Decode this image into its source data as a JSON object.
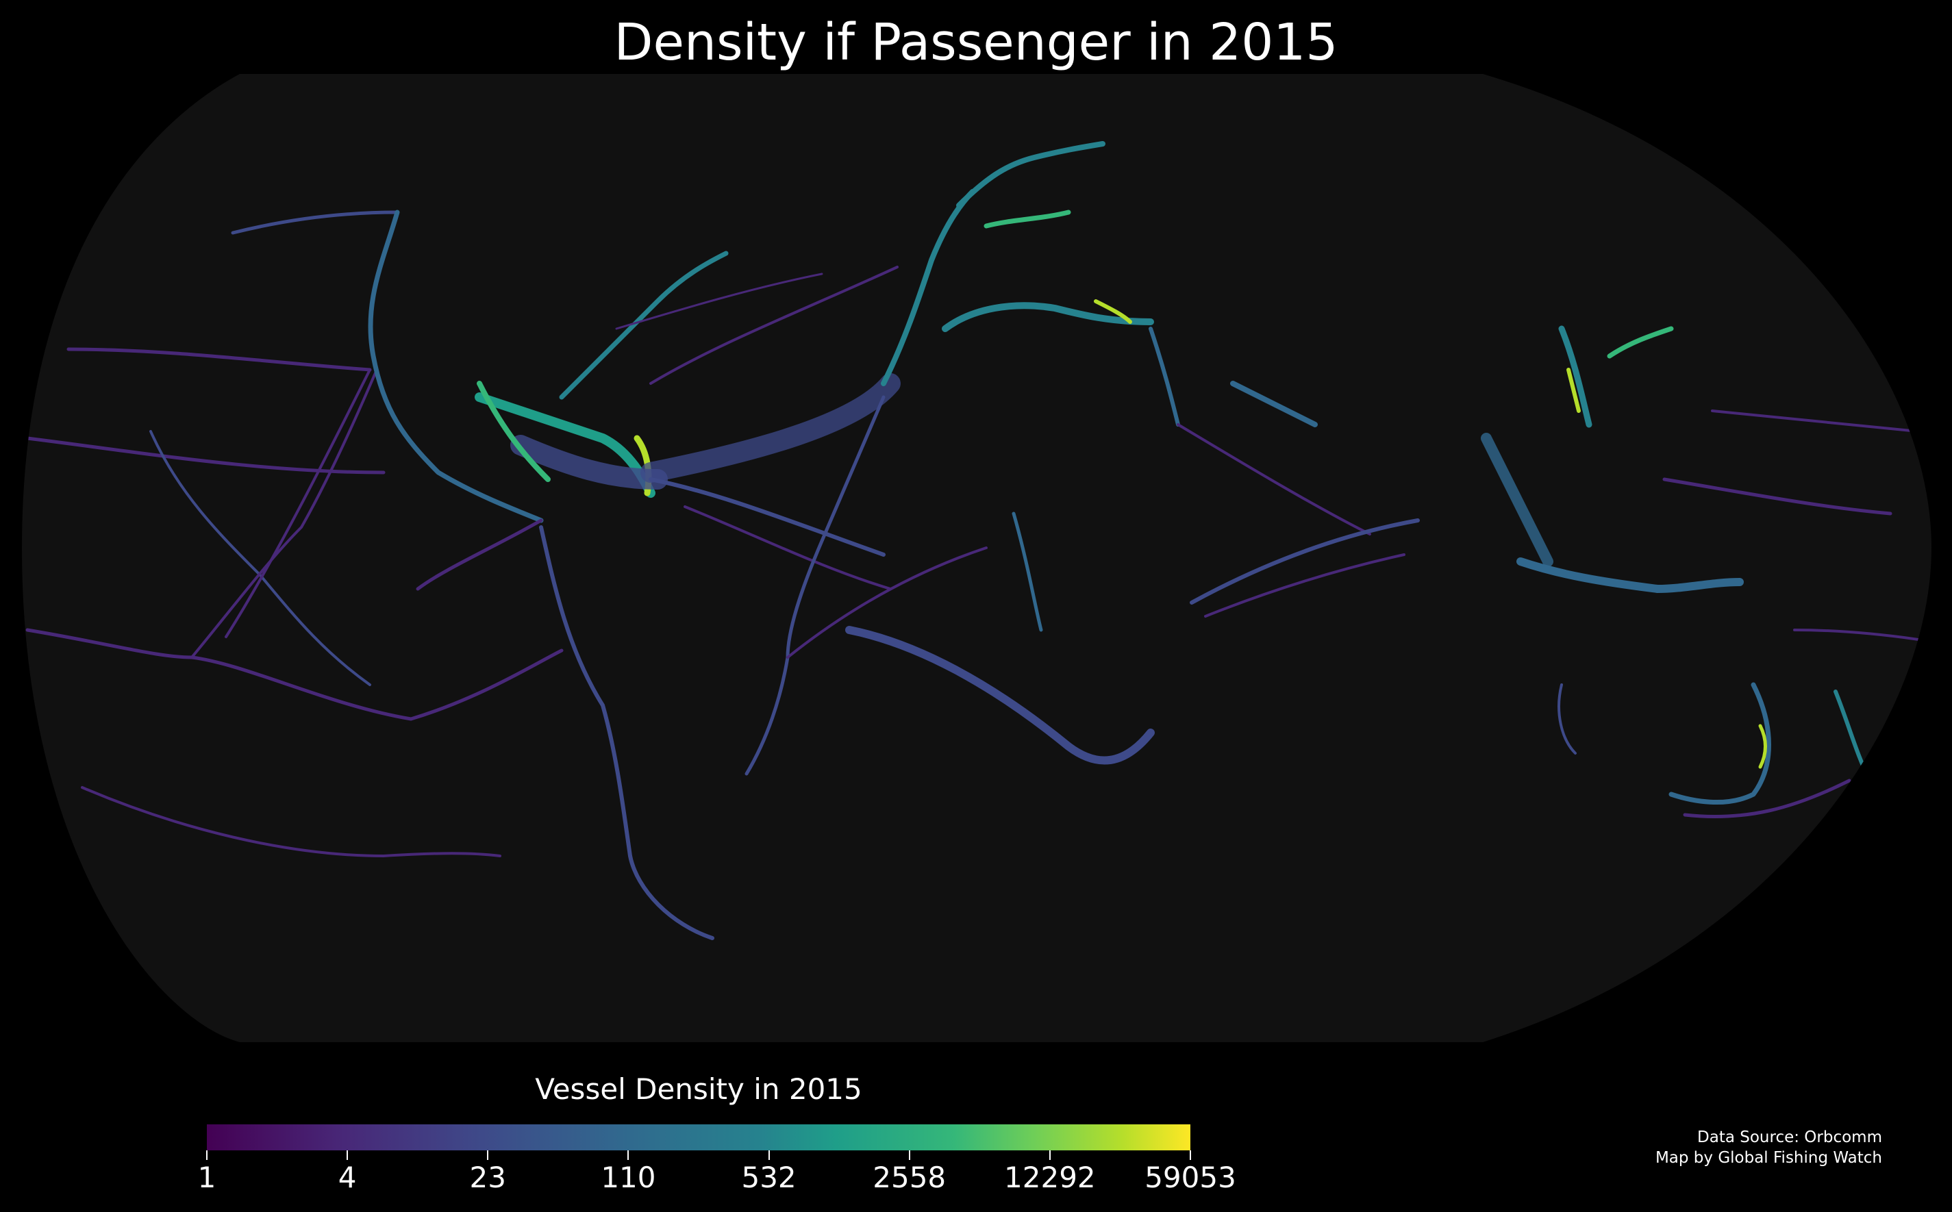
{
  "title": "Density if Passenger in 2015",
  "colorbar": {
    "title": "Vessel Density in 2015",
    "ticks": [
      "1",
      "4",
      "23",
      "110",
      "532",
      "2558",
      "12292",
      "59053"
    ],
    "colors": [
      "#440154",
      "#482878",
      "#3e4a89",
      "#31688e",
      "#26828e",
      "#1f9e89",
      "#35b779",
      "#6ece58",
      "#b5de2b",
      "#fde725"
    ]
  },
  "credits": {
    "source": "Data Source: Orbcomm",
    "author": "Map by Global Fishing Watch"
  },
  "map": {
    "projection": "Robinson-like ellipse",
    "background": "#000000",
    "ocean_color": "#111111",
    "scale": "log"
  }
}
